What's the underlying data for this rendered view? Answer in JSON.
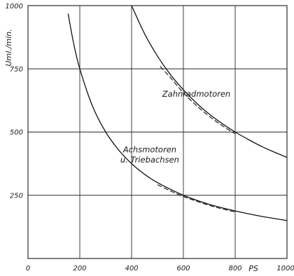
{
  "chart_data": {
    "type": "line",
    "title": "",
    "xlabel": "PS",
    "ylabel": "Uml./min.",
    "xlim": [
      0,
      1000
    ],
    "ylim": [
      0,
      1000
    ],
    "xticks": [
      0,
      200,
      400,
      600,
      800,
      1000
    ],
    "yticks": [
      250,
      500,
      750,
      1000
    ],
    "xtick_labels": [
      "0",
      "200",
      "400",
      "600",
      "800",
      "1000"
    ],
    "ytick_labels": [
      "250",
      "500",
      "750",
      "1000"
    ],
    "grid": true,
    "series": [
      {
        "name": "Zahnradmotoren",
        "style": "solid",
        "x": [
          400,
          450,
          500,
          550,
          600,
          650,
          700,
          750,
          800,
          850,
          900,
          950,
          1000
        ],
        "y": [
          1000,
          889,
          800,
          727,
          667,
          615,
          571,
          533,
          500,
          471,
          444,
          421,
          400
        ]
      },
      {
        "name": "Zahnradmotoren",
        "style": "dashed",
        "x": [
          510,
          550,
          600,
          650,
          700,
          750,
          800
        ],
        "y": [
          760,
          715,
          655,
          605,
          562,
          525,
          493
        ]
      },
      {
        "name": "Achsmotoren u. Triebachsen",
        "style": "solid",
        "x": [
          155,
          175,
          200,
          250,
          300,
          350,
          400,
          450,
          500,
          600,
          700,
          800,
          900,
          1000
        ],
        "y": [
          968,
          857,
          750,
          600,
          500,
          429,
          375,
          333,
          300,
          250,
          214,
          188,
          167,
          150
        ]
      },
      {
        "name": "Achsmotoren u. Triebachsen",
        "style": "dashed",
        "x": [
          500,
          550,
          600,
          650,
          700,
          750,
          800
        ],
        "y": [
          292,
          267,
          245,
          227,
          210,
          196,
          184
        ]
      }
    ],
    "annotations": [
      {
        "text": "Zahnradmotoren",
        "x": 650,
        "y": 640
      },
      {
        "text": "Achsmotoren",
        "x": 470,
        "y": 420
      },
      {
        "text": "u. Triebachsen",
        "x": 470,
        "y": 380
      }
    ]
  }
}
